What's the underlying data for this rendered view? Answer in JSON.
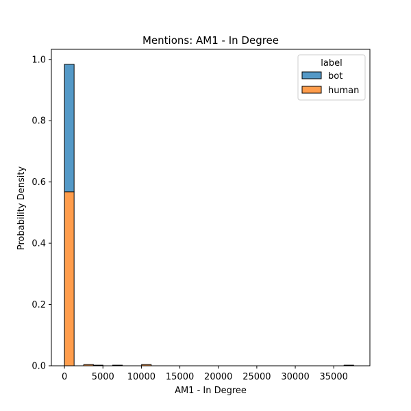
{
  "chart_data": {
    "type": "bar",
    "title": "Mentions: AM1 - In Degree",
    "xlabel": "AM1 - In Degree",
    "ylabel": "Probability Density",
    "xlim": [
      -1700,
      39700
    ],
    "ylim": [
      0,
      1.033
    ],
    "x_ticks": [
      0,
      5000,
      10000,
      15000,
      20000,
      25000,
      30000,
      35000
    ],
    "x_tick_labels": [
      "0",
      "5000",
      "10000",
      "15000",
      "20000",
      "25000",
      "30000",
      "35000"
    ],
    "y_ticks": [
      0.0,
      0.2,
      0.4,
      0.6,
      0.8,
      1.0
    ],
    "y_tick_labels": [
      "0.0",
      "0.2",
      "0.4",
      "0.6",
      "0.8",
      "1.0"
    ],
    "stacked": true,
    "bin_edges": [
      0,
      1253,
      2506,
      3759,
      5012,
      6265,
      7518,
      8771,
      10024,
      11277,
      12530,
      13783,
      15036,
      16289,
      17542,
      18795,
      20048,
      21301,
      22554,
      23807,
      25060,
      26313,
      27566,
      28819,
      30072,
      31325,
      32578,
      33831,
      35084,
      36337,
      37590
    ],
    "series": [
      {
        "name": "human",
        "color": "#ff9d4c",
        "values": [
          0.568,
          0,
          0.004,
          0.002,
          0,
          0.002,
          0,
          0,
          0.004,
          0,
          0,
          0,
          0,
          0,
          0,
          0,
          0,
          0,
          0,
          0,
          0,
          0,
          0,
          0,
          0,
          0,
          0,
          0,
          0,
          0.002
        ]
      },
      {
        "name": "bot",
        "color": "#5499c7",
        "values": [
          0.416,
          0,
          0,
          0,
          0,
          0,
          0,
          0,
          0,
          0,
          0,
          0,
          0,
          0,
          0,
          0,
          0,
          0,
          0,
          0,
          0,
          0,
          0,
          0,
          0,
          0,
          0,
          0,
          0,
          0
        ]
      }
    ],
    "legend": {
      "title": "label",
      "position": "top-right",
      "entries": [
        "bot",
        "human"
      ]
    },
    "grid": false
  }
}
